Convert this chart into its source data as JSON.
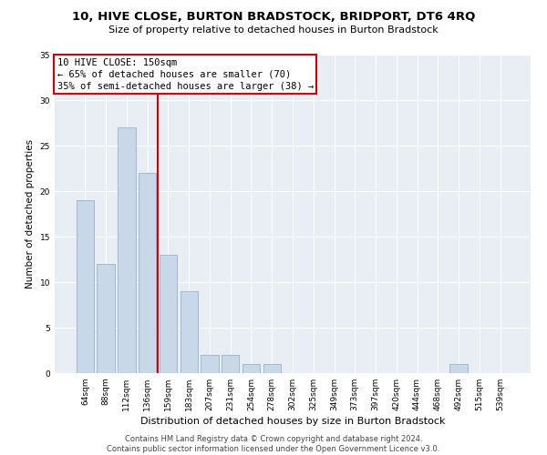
{
  "title": "10, HIVE CLOSE, BURTON BRADSTOCK, BRIDPORT, DT6 4RQ",
  "subtitle": "Size of property relative to detached houses in Burton Bradstock",
  "xlabel": "Distribution of detached houses by size in Burton Bradstock",
  "ylabel": "Number of detached properties",
  "categories": [
    "64sqm",
    "88sqm",
    "112sqm",
    "136sqm",
    "159sqm",
    "183sqm",
    "207sqm",
    "231sqm",
    "254sqm",
    "278sqm",
    "302sqm",
    "325sqm",
    "349sqm",
    "373sqm",
    "397sqm",
    "420sqm",
    "444sqm",
    "468sqm",
    "492sqm",
    "515sqm",
    "539sqm"
  ],
  "values": [
    19,
    12,
    27,
    22,
    13,
    9,
    2,
    2,
    1,
    1,
    0,
    0,
    0,
    0,
    0,
    0,
    0,
    0,
    1,
    0,
    0
  ],
  "bar_color": "#c8d8e8",
  "bar_edge_color": "#a0b8cc",
  "vline_x": 3.5,
  "vline_color": "#cc0000",
  "annotation_lines": [
    "10 HIVE CLOSE: 150sqm",
    "← 65% of detached houses are smaller (70)",
    "35% of semi-detached houses are larger (38) →"
  ],
  "annotation_box_color": "#ffffff",
  "annotation_box_edge_color": "#cc0000",
  "ylim": [
    0,
    35
  ],
  "yticks": [
    0,
    5,
    10,
    15,
    20,
    25,
    30,
    35
  ],
  "background_color": "#e8eef4",
  "footer_line1": "Contains HM Land Registry data © Crown copyright and database right 2024.",
  "footer_line2": "Contains public sector information licensed under the Open Government Licence v3.0.",
  "title_fontsize": 9.5,
  "subtitle_fontsize": 8,
  "xlabel_fontsize": 8,
  "ylabel_fontsize": 7.5,
  "tick_fontsize": 6.5,
  "annotation_fontsize": 7.5,
  "footer_fontsize": 6
}
